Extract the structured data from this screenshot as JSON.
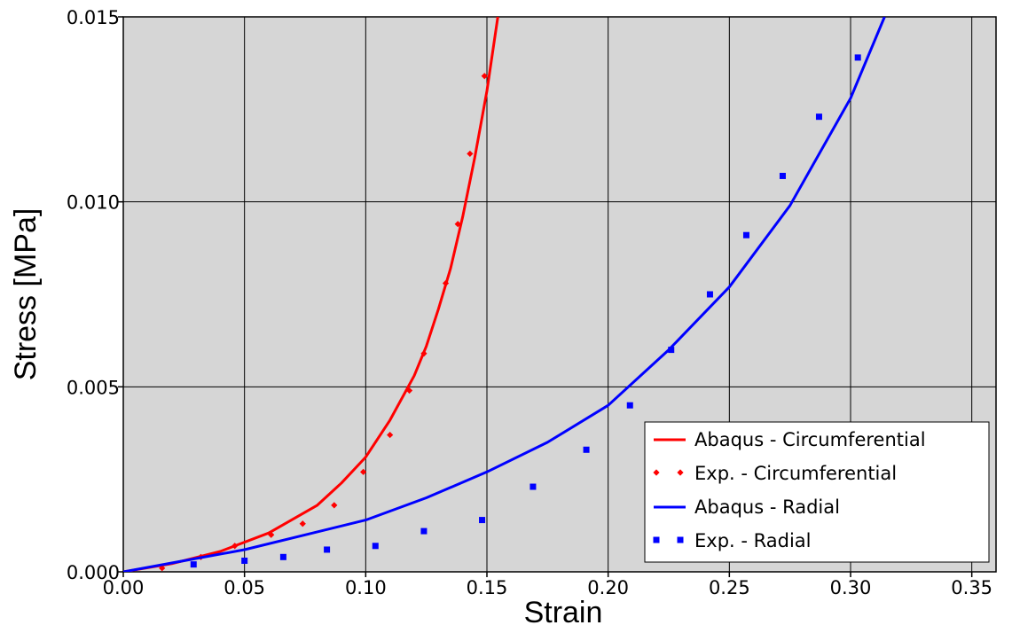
{
  "chart_data": {
    "type": "line",
    "xlabel": "Strain",
    "ylabel": "Stress [MPa]",
    "xlim": [
      0.0,
      0.36
    ],
    "ylim": [
      0.0,
      0.015
    ],
    "x_ticks": [
      "0.00",
      "0.05",
      "0.10",
      "0.15",
      "0.20",
      "0.25",
      "0.30",
      "0.35"
    ],
    "y_ticks": [
      "0.000",
      "0.005",
      "0.010",
      "0.015"
    ],
    "grid": true,
    "plot_background": "#d6d6d6",
    "legend_position": "bottom-right",
    "series": [
      {
        "name": "Abaqus - Circumferential",
        "kind": "line",
        "color": "#ff0000",
        "x": [
          0.0,
          0.02,
          0.04,
          0.06,
          0.08,
          0.09,
          0.1,
          0.11,
          0.12,
          0.125,
          0.13,
          0.135,
          0.14,
          0.145,
          0.15,
          0.1545
        ],
        "y": [
          0.0,
          0.00022,
          0.00055,
          0.00105,
          0.0018,
          0.0024,
          0.0031,
          0.0041,
          0.0053,
          0.0061,
          0.0071,
          0.0082,
          0.0096,
          0.0112,
          0.013,
          0.015
        ]
      },
      {
        "name": "Exp. - Circumferential",
        "kind": "marker",
        "marker": "diamond",
        "color": "#ff0000",
        "x": [
          0.016,
          0.032,
          0.046,
          0.061,
          0.074,
          0.087,
          0.099,
          0.11,
          0.118,
          0.124,
          0.133,
          0.138,
          0.143,
          0.149
        ],
        "y": [
          0.0001,
          0.0004,
          0.0007,
          0.001,
          0.0013,
          0.0018,
          0.0027,
          0.0037,
          0.0049,
          0.0059,
          0.0078,
          0.0094,
          0.0113,
          0.0134
        ]
      },
      {
        "name": "Abaqus - Radial",
        "kind": "line",
        "color": "#0000ff",
        "x": [
          0.0,
          0.025,
          0.05,
          0.075,
          0.1,
          0.125,
          0.15,
          0.175,
          0.2,
          0.225,
          0.25,
          0.275,
          0.3,
          0.314
        ],
        "y": [
          0.0,
          0.0003,
          0.0006,
          0.001,
          0.0014,
          0.002,
          0.0027,
          0.0035,
          0.0045,
          0.006,
          0.0077,
          0.0099,
          0.0128,
          0.015
        ]
      },
      {
        "name": "Exp. - Radial",
        "kind": "marker",
        "marker": "square",
        "color": "#0000ff",
        "x": [
          0.029,
          0.05,
          0.066,
          0.084,
          0.104,
          0.124,
          0.148,
          0.169,
          0.191,
          0.209,
          0.226,
          0.242,
          0.257,
          0.272,
          0.287,
          0.303
        ],
        "y": [
          0.0002,
          0.0003,
          0.0004,
          0.0006,
          0.0007,
          0.0011,
          0.0014,
          0.0023,
          0.0033,
          0.0045,
          0.006,
          0.0075,
          0.0091,
          0.0107,
          0.0123,
          0.0139
        ]
      }
    ]
  }
}
